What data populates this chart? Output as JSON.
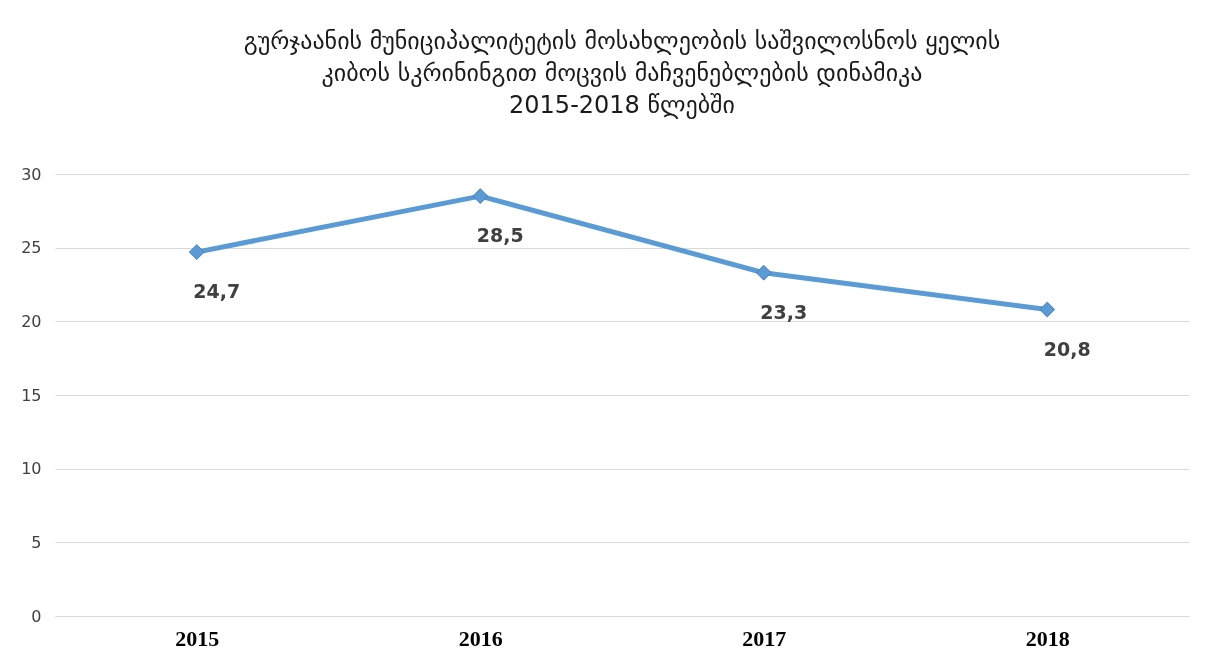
{
  "chart_data": {
    "type": "line",
    "title": "გურჯაანის მუნიციპალიტეტის მოსახლეობის საშვილოსნოს ყელის\nკიბოს სკრინინგით მოცვის მაჩვენებლების დინამიკა\n2015-2018 წლებში",
    "categories": [
      "2015",
      "2016",
      "2017",
      "2018"
    ],
    "series": [
      {
        "color": "#5b9bd5",
        "values": [
          24.7,
          28.5,
          23.3,
          20.8
        ],
        "value_labels": [
          "24,7",
          "28,5",
          "23,3",
          "20,8"
        ]
      }
    ],
    "ylim": [
      0,
      30
    ],
    "yticks": [
      0,
      5,
      10,
      15,
      20,
      25,
      30
    ],
    "grid": "y",
    "legend": false,
    "marker": "diamond",
    "line_style": "solid"
  }
}
